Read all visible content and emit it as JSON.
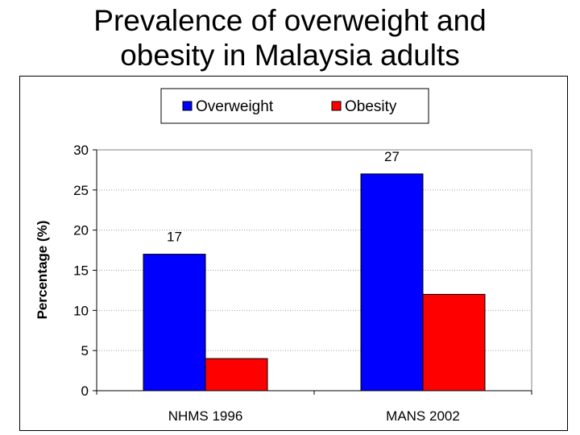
{
  "title_line1": "Prevalence of overweight and",
  "title_line2": "obesity in Malaysia adults",
  "chart_data": {
    "type": "bar",
    "categories": [
      "NHMS 1996",
      "MANS 2002"
    ],
    "series": [
      {
        "name": "Overweight",
        "values": [
          17,
          27
        ],
        "color": "#0000ff",
        "data_labels": [
          "17",
          "27"
        ]
      },
      {
        "name": "Obesity",
        "values": [
          4,
          12
        ],
        "color": "#ff0000",
        "data_labels": null
      }
    ],
    "ylabel": "Percentage (%)",
    "xlabel": "",
    "ylim": [
      0,
      30
    ],
    "yticks": [
      0,
      5,
      10,
      15,
      20,
      25,
      30
    ],
    "grid": true,
    "legend_position": "top"
  }
}
